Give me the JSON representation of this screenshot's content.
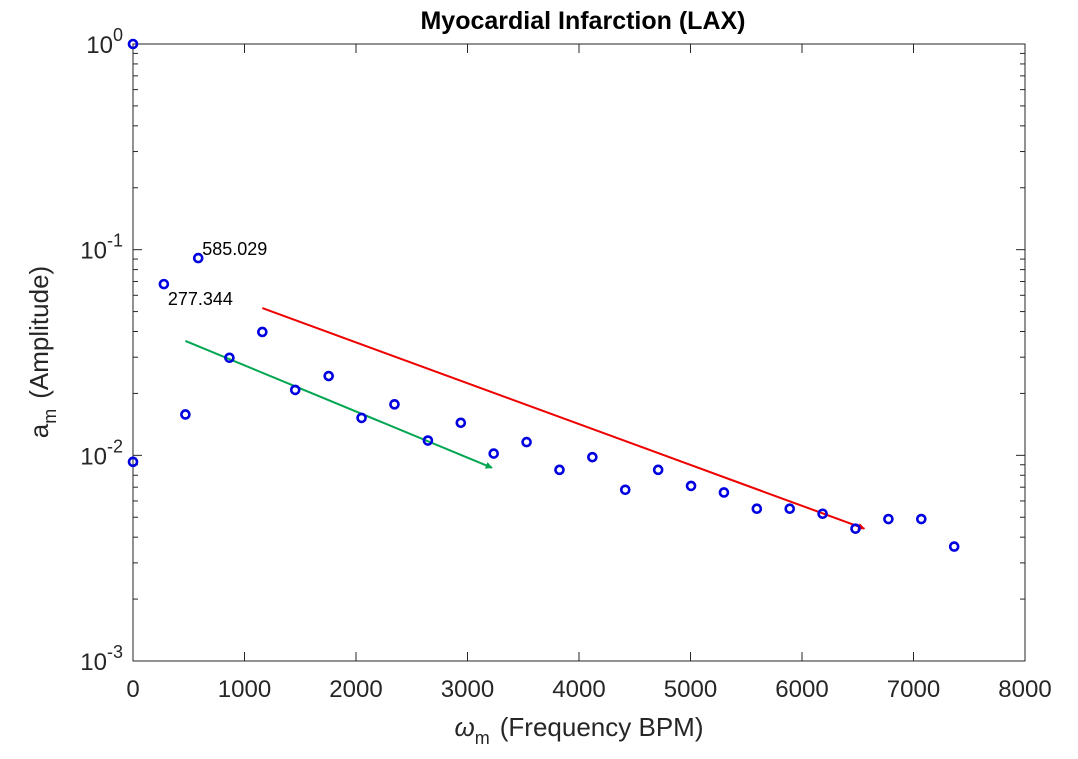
{
  "chart_data": {
    "type": "scatter",
    "title": "Myocardial Infarction (LAX)",
    "xlabel": {
      "symbol": "ω",
      "subscript": "m",
      "text": "(Frequency BPM)"
    },
    "ylabel": {
      "symbol": "a",
      "subscript": "m",
      "text": "(Amplitude)"
    },
    "xscale": "linear",
    "yscale": "log",
    "xlim": [
      0,
      8000
    ],
    "ylim": [
      0.001,
      1
    ],
    "xticks": [
      0,
      1000,
      2000,
      3000,
      4000,
      5000,
      6000,
      7000,
      8000
    ],
    "yticks": [
      {
        "value": 1,
        "base": "10",
        "exp": "0"
      },
      {
        "value": 0.1,
        "base": "10",
        "exp": "-1"
      },
      {
        "value": 0.01,
        "base": "10",
        "exp": "-2"
      },
      {
        "value": 0.001,
        "base": "10",
        "exp": "-3"
      }
    ],
    "marker_color": "#0000e0",
    "series": [
      {
        "name": "amplitudes",
        "x": [
          0,
          0,
          277,
          470,
          585,
          865,
          1160,
          1455,
          1755,
          2050,
          2345,
          2645,
          2940,
          3235,
          3530,
          3825,
          4120,
          4415,
          4710,
          5005,
          5300,
          5595,
          5890,
          6185,
          6480,
          6775,
          7070,
          7365
        ],
        "y": [
          1.0,
          0.0093,
          0.068,
          0.0158,
          0.091,
          0.0298,
          0.0398,
          0.0208,
          0.0243,
          0.0152,
          0.0177,
          0.0118,
          0.0144,
          0.0102,
          0.0116,
          0.0085,
          0.0098,
          0.0068,
          0.0085,
          0.0071,
          0.0066,
          0.0055,
          0.0055,
          0.0052,
          0.0044,
          0.0049,
          0.0049,
          0.0036
        ]
      }
    ],
    "arrows": [
      {
        "name": "red-trend",
        "color": "#ee0000",
        "from": [
          1160,
          0.052
        ],
        "to": [
          6560,
          0.0044
        ]
      },
      {
        "name": "green-trend",
        "color": "#00a650",
        "from": [
          470,
          0.036
        ],
        "to": [
          3220,
          0.0087
        ]
      }
    ],
    "annotations": [
      {
        "text": "585.029",
        "x": 585,
        "y": 0.091
      },
      {
        "text": "277.344",
        "x": 277,
        "y": 0.068
      }
    ]
  }
}
